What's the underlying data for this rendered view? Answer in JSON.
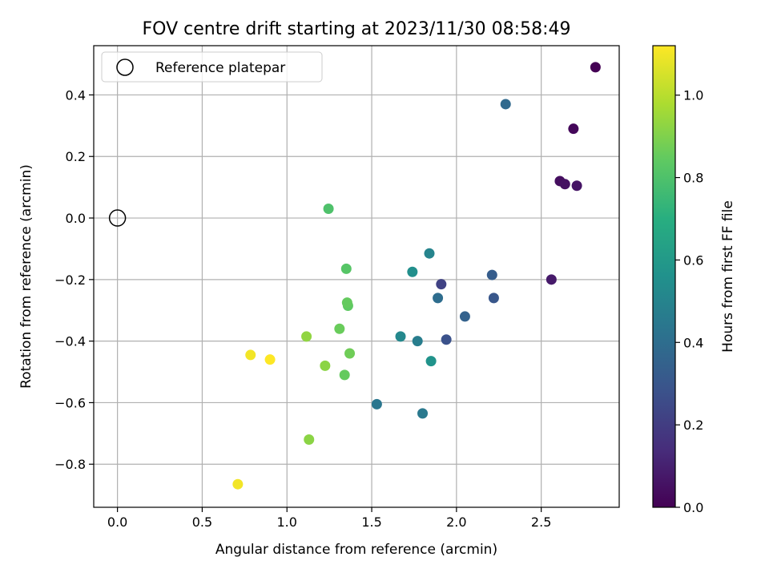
{
  "chart_data": {
    "type": "scatter",
    "title": "FOV centre drift starting at 2023/11/30 08:58:49",
    "xlabel": "Angular distance from reference (arcmin)",
    "ylabel": "Rotation from reference (arcmin)",
    "xlim": [
      -0.14,
      2.96
    ],
    "ylim": [
      -0.94,
      0.56
    ],
    "xticks": [
      0.0,
      0.5,
      1.0,
      1.5,
      2.0,
      2.5
    ],
    "yticks": [
      -0.8,
      -0.6,
      -0.4,
      -0.2,
      0.0,
      0.2,
      0.4
    ],
    "grid": true,
    "legend": {
      "location": "upper-left",
      "entries": [
        "Reference platepar"
      ]
    },
    "reference_point": {
      "x": 0.0,
      "y": 0.0,
      "label": "Reference platepar"
    },
    "colorbar": {
      "label": "Hours from first FF file",
      "colormap": "viridis",
      "range": [
        0.0,
        1.12
      ],
      "ticks": [
        0.0,
        0.2,
        0.4,
        0.6,
        0.8,
        1.0
      ]
    },
    "points": [
      {
        "x": 2.82,
        "y": 0.49,
        "hours": 0.0
      },
      {
        "x": 2.69,
        "y": 0.29,
        "hours": 0.02
      },
      {
        "x": 2.61,
        "y": 0.12,
        "hours": 0.04
      },
      {
        "x": 2.64,
        "y": 0.11,
        "hours": 0.05
      },
      {
        "x": 2.71,
        "y": 0.105,
        "hours": 0.06
      },
      {
        "x": 2.56,
        "y": -0.2,
        "hours": 0.08
      },
      {
        "x": 1.91,
        "y": -0.215,
        "hours": 0.22
      },
      {
        "x": 1.94,
        "y": -0.395,
        "hours": 0.28
      },
      {
        "x": 2.22,
        "y": -0.26,
        "hours": 0.3
      },
      {
        "x": 2.21,
        "y": -0.185,
        "hours": 0.33
      },
      {
        "x": 2.05,
        "y": -0.32,
        "hours": 0.35
      },
      {
        "x": 1.89,
        "y": -0.26,
        "hours": 0.4
      },
      {
        "x": 2.29,
        "y": 0.37,
        "hours": 0.38
      },
      {
        "x": 1.53,
        "y": -0.605,
        "hours": 0.44
      },
      {
        "x": 1.8,
        "y": -0.635,
        "hours": 0.45
      },
      {
        "x": 1.77,
        "y": -0.4,
        "hours": 0.47
      },
      {
        "x": 1.84,
        "y": -0.115,
        "hours": 0.5
      },
      {
        "x": 1.67,
        "y": -0.385,
        "hours": 0.52
      },
      {
        "x": 1.74,
        "y": -0.175,
        "hours": 0.55
      },
      {
        "x": 1.85,
        "y": -0.465,
        "hours": 0.57
      },
      {
        "x": 1.245,
        "y": 0.03,
        "hours": 0.8
      },
      {
        "x": 1.35,
        "y": -0.165,
        "hours": 0.82
      },
      {
        "x": 1.36,
        "y": -0.285,
        "hours": 0.84
      },
      {
        "x": 1.355,
        "y": -0.275,
        "hours": 0.85
      },
      {
        "x": 1.31,
        "y": -0.36,
        "hours": 0.86
      },
      {
        "x": 1.37,
        "y": -0.44,
        "hours": 0.87
      },
      {
        "x": 1.34,
        "y": -0.51,
        "hours": 0.85
      },
      {
        "x": 1.225,
        "y": -0.48,
        "hours": 0.92
      },
      {
        "x": 1.115,
        "y": -0.385,
        "hours": 0.93
      },
      {
        "x": 1.13,
        "y": -0.72,
        "hours": 0.92
      },
      {
        "x": 0.785,
        "y": -0.445,
        "hours": 1.1
      },
      {
        "x": 0.9,
        "y": -0.46,
        "hours": 1.12
      },
      {
        "x": 0.71,
        "y": -0.865,
        "hours": 1.1
      }
    ]
  }
}
